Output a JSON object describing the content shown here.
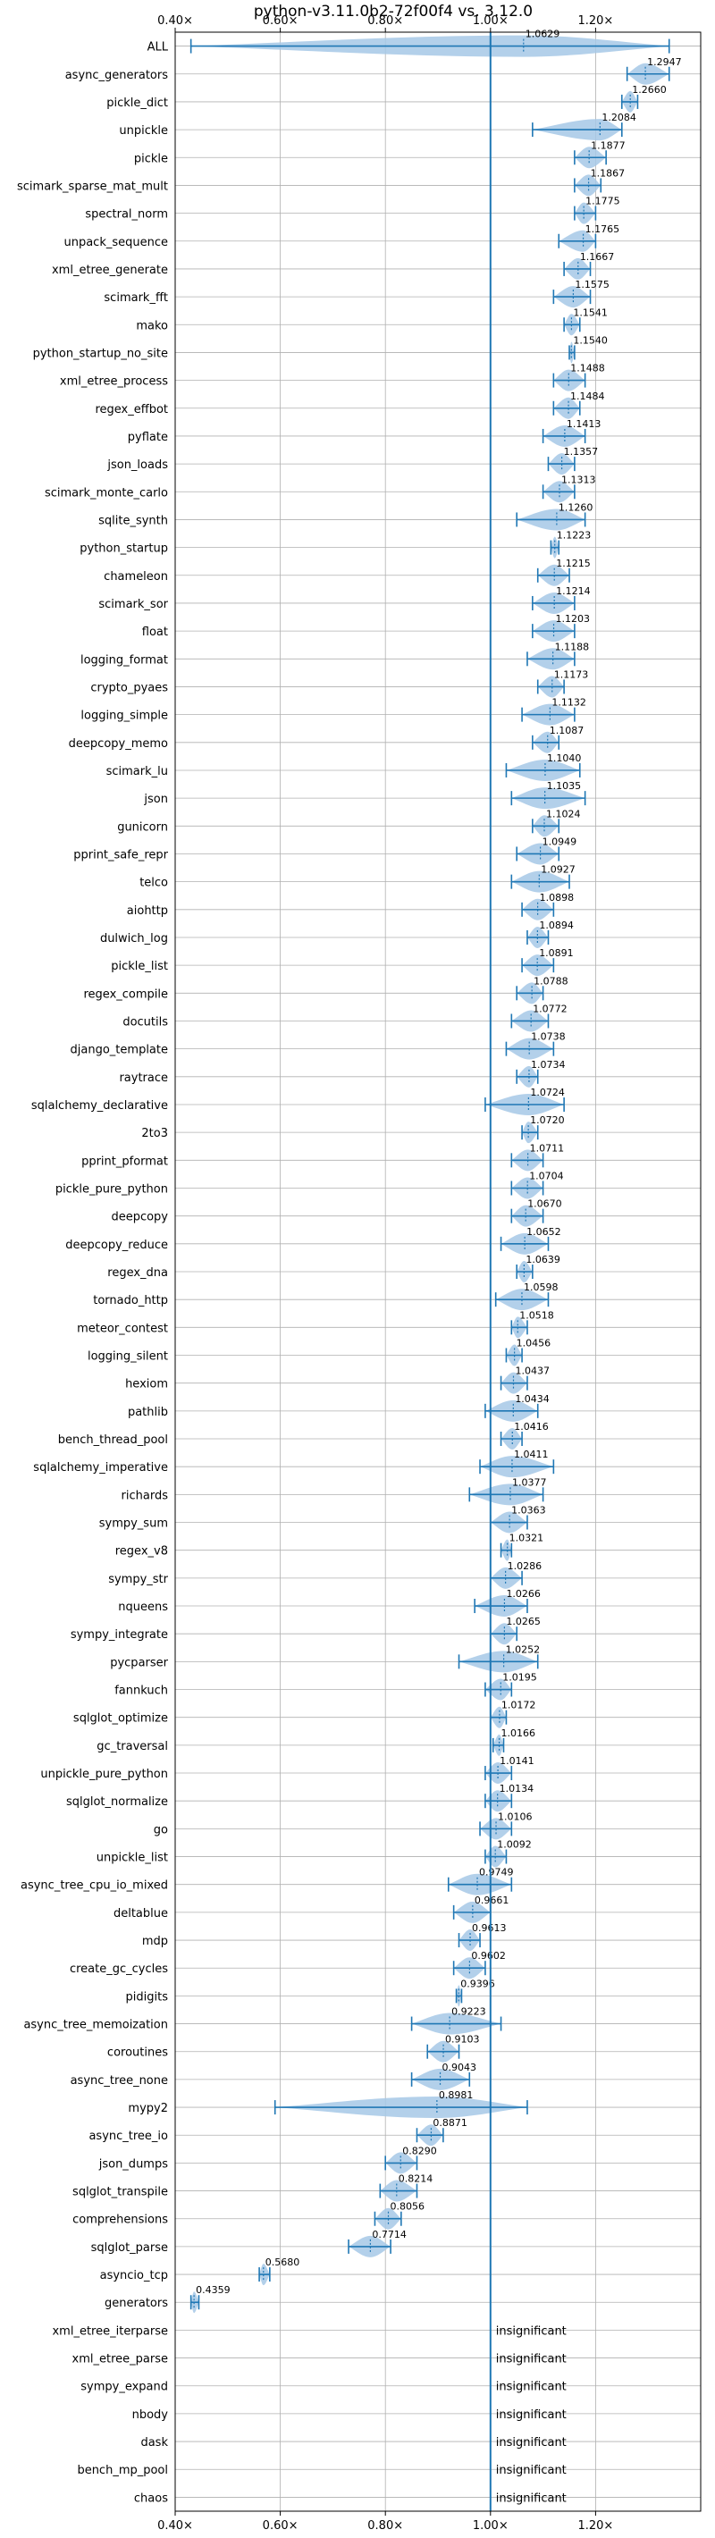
{
  "chart_data": {
    "type": "violin",
    "title": "python-v3.11.0b2-72f00f4 vs. 3.12.0",
    "xlabel": "",
    "ylabel": "",
    "xlim": [
      0.4,
      1.4
    ],
    "x_ticks": [
      0.4,
      0.6,
      0.8,
      1.0,
      1.2
    ],
    "x_tick_labels": [
      "0.40×",
      "0.60×",
      "0.80×",
      "1.00×",
      "1.20×"
    ],
    "reference_line": 1.0,
    "grid": true,
    "colors": {
      "accent": "#1f77b4",
      "violin": "#a6c8e6",
      "grid": "#b0b0b0"
    },
    "benchmarks": [
      {
        "name": "ALL",
        "value": 1.0629,
        "min": 0.43,
        "max": 1.34,
        "label": "1.0629"
      },
      {
        "name": "async_generators",
        "value": 1.2947,
        "min": 1.26,
        "max": 1.34,
        "label": "1.2947"
      },
      {
        "name": "pickle_dict",
        "value": 1.266,
        "min": 1.25,
        "max": 1.28,
        "label": "1.2660"
      },
      {
        "name": "unpickle",
        "value": 1.2084,
        "min": 1.08,
        "max": 1.25,
        "label": "1.2084"
      },
      {
        "name": "pickle",
        "value": 1.1877,
        "min": 1.16,
        "max": 1.22,
        "label": "1.1877"
      },
      {
        "name": "scimark_sparse_mat_mult",
        "value": 1.1867,
        "min": 1.16,
        "max": 1.21,
        "label": "1.1867"
      },
      {
        "name": "spectral_norm",
        "value": 1.1775,
        "min": 1.16,
        "max": 1.2,
        "label": "1.1775"
      },
      {
        "name": "unpack_sequence",
        "value": 1.1765,
        "min": 1.13,
        "max": 1.2,
        "label": "1.1765"
      },
      {
        "name": "xml_etree_generate",
        "value": 1.1667,
        "min": 1.14,
        "max": 1.19,
        "label": "1.1667"
      },
      {
        "name": "scimark_fft",
        "value": 1.1575,
        "min": 1.12,
        "max": 1.19,
        "label": "1.1575"
      },
      {
        "name": "mako",
        "value": 1.1541,
        "min": 1.14,
        "max": 1.17,
        "label": "1.1541"
      },
      {
        "name": "python_startup_no_site",
        "value": 1.154,
        "min": 1.15,
        "max": 1.16,
        "label": "1.1540"
      },
      {
        "name": "xml_etree_process",
        "value": 1.1488,
        "min": 1.12,
        "max": 1.18,
        "label": "1.1488"
      },
      {
        "name": "regex_effbot",
        "value": 1.1484,
        "min": 1.12,
        "max": 1.17,
        "label": "1.1484"
      },
      {
        "name": "pyflate",
        "value": 1.1413,
        "min": 1.1,
        "max": 1.18,
        "label": "1.1413"
      },
      {
        "name": "json_loads",
        "value": 1.1357,
        "min": 1.11,
        "max": 1.16,
        "label": "1.1357"
      },
      {
        "name": "scimark_monte_carlo",
        "value": 1.1313,
        "min": 1.1,
        "max": 1.16,
        "label": "1.1313"
      },
      {
        "name": "sqlite_synth",
        "value": 1.126,
        "min": 1.05,
        "max": 1.18,
        "label": "1.1260"
      },
      {
        "name": "python_startup",
        "value": 1.1223,
        "min": 1.115,
        "max": 1.13,
        "label": "1.1223"
      },
      {
        "name": "chameleon",
        "value": 1.1215,
        "min": 1.09,
        "max": 1.15,
        "label": "1.1215"
      },
      {
        "name": "scimark_sor",
        "value": 1.1214,
        "min": 1.08,
        "max": 1.16,
        "label": "1.1214"
      },
      {
        "name": "float",
        "value": 1.1203,
        "min": 1.08,
        "max": 1.16,
        "label": "1.1203"
      },
      {
        "name": "logging_format",
        "value": 1.1188,
        "min": 1.07,
        "max": 1.16,
        "label": "1.1188"
      },
      {
        "name": "crypto_pyaes",
        "value": 1.1173,
        "min": 1.09,
        "max": 1.14,
        "label": "1.1173"
      },
      {
        "name": "logging_simple",
        "value": 1.1132,
        "min": 1.06,
        "max": 1.16,
        "label": "1.1132"
      },
      {
        "name": "deepcopy_memo",
        "value": 1.1087,
        "min": 1.08,
        "max": 1.13,
        "label": "1.1087"
      },
      {
        "name": "scimark_lu",
        "value": 1.104,
        "min": 1.03,
        "max": 1.17,
        "label": "1.1040"
      },
      {
        "name": "json",
        "value": 1.1035,
        "min": 1.04,
        "max": 1.18,
        "label": "1.1035"
      },
      {
        "name": "gunicorn",
        "value": 1.1024,
        "min": 1.08,
        "max": 1.13,
        "label": "1.1024"
      },
      {
        "name": "pprint_safe_repr",
        "value": 1.0949,
        "min": 1.05,
        "max": 1.13,
        "label": "1.0949"
      },
      {
        "name": "telco",
        "value": 1.0927,
        "min": 1.04,
        "max": 1.15,
        "label": "1.0927"
      },
      {
        "name": "aiohttp",
        "value": 1.0898,
        "min": 1.06,
        "max": 1.12,
        "label": "1.0898"
      },
      {
        "name": "dulwich_log",
        "value": 1.0894,
        "min": 1.07,
        "max": 1.11,
        "label": "1.0894"
      },
      {
        "name": "pickle_list",
        "value": 1.0891,
        "min": 1.06,
        "max": 1.12,
        "label": "1.0891"
      },
      {
        "name": "regex_compile",
        "value": 1.0788,
        "min": 1.05,
        "max": 1.1,
        "label": "1.0788"
      },
      {
        "name": "docutils",
        "value": 1.0772,
        "min": 1.04,
        "max": 1.11,
        "label": "1.0772"
      },
      {
        "name": "django_template",
        "value": 1.0738,
        "min": 1.03,
        "max": 1.12,
        "label": "1.0738"
      },
      {
        "name": "raytrace",
        "value": 1.0734,
        "min": 1.05,
        "max": 1.09,
        "label": "1.0734"
      },
      {
        "name": "sqlalchemy_declarative",
        "value": 1.0724,
        "min": 0.99,
        "max": 1.14,
        "label": "1.0724"
      },
      {
        "name": "2to3",
        "value": 1.072,
        "min": 1.06,
        "max": 1.09,
        "label": "1.0720"
      },
      {
        "name": "pprint_pformat",
        "value": 1.0711,
        "min": 1.04,
        "max": 1.1,
        "label": "1.0711"
      },
      {
        "name": "pickle_pure_python",
        "value": 1.0704,
        "min": 1.04,
        "max": 1.1,
        "label": "1.0704"
      },
      {
        "name": "deepcopy",
        "value": 1.067,
        "min": 1.04,
        "max": 1.1,
        "label": "1.0670"
      },
      {
        "name": "deepcopy_reduce",
        "value": 1.0652,
        "min": 1.02,
        "max": 1.11,
        "label": "1.0652"
      },
      {
        "name": "regex_dna",
        "value": 1.0639,
        "min": 1.05,
        "max": 1.08,
        "label": "1.0639"
      },
      {
        "name": "tornado_http",
        "value": 1.0598,
        "min": 1.01,
        "max": 1.11,
        "label": "1.0598"
      },
      {
        "name": "meteor_contest",
        "value": 1.0518,
        "min": 1.04,
        "max": 1.07,
        "label": "1.0518"
      },
      {
        "name": "logging_silent",
        "value": 1.0456,
        "min": 1.03,
        "max": 1.06,
        "label": "1.0456"
      },
      {
        "name": "hexiom",
        "value": 1.0437,
        "min": 1.02,
        "max": 1.07,
        "label": "1.0437"
      },
      {
        "name": "pathlib",
        "value": 1.0434,
        "min": 0.99,
        "max": 1.09,
        "label": "1.0434"
      },
      {
        "name": "bench_thread_pool",
        "value": 1.0416,
        "min": 1.02,
        "max": 1.06,
        "label": "1.0416"
      },
      {
        "name": "sqlalchemy_imperative",
        "value": 1.0411,
        "min": 0.98,
        "max": 1.12,
        "label": "1.0411"
      },
      {
        "name": "richards",
        "value": 1.0377,
        "min": 0.96,
        "max": 1.1,
        "label": "1.0377"
      },
      {
        "name": "sympy_sum",
        "value": 1.0363,
        "min": 1.0,
        "max": 1.07,
        "label": "1.0363"
      },
      {
        "name": "regex_v8",
        "value": 1.0321,
        "min": 1.02,
        "max": 1.04,
        "label": "1.0321"
      },
      {
        "name": "sympy_str",
        "value": 1.0286,
        "min": 1.0,
        "max": 1.06,
        "label": "1.0286"
      },
      {
        "name": "nqueens",
        "value": 1.0266,
        "min": 0.97,
        "max": 1.07,
        "label": "1.0266"
      },
      {
        "name": "sympy_integrate",
        "value": 1.0265,
        "min": 1.0,
        "max": 1.05,
        "label": "1.0265"
      },
      {
        "name": "pycparser",
        "value": 1.0252,
        "min": 0.94,
        "max": 1.09,
        "label": "1.0252"
      },
      {
        "name": "fannkuch",
        "value": 1.0195,
        "min": 0.99,
        "max": 1.04,
        "label": "1.0195"
      },
      {
        "name": "sqlglot_optimize",
        "value": 1.0172,
        "min": 1.0,
        "max": 1.03,
        "label": "1.0172"
      },
      {
        "name": "gc_traversal",
        "value": 1.0166,
        "min": 1.005,
        "max": 1.025,
        "label": "1.0166"
      },
      {
        "name": "unpickle_pure_python",
        "value": 1.0141,
        "min": 0.99,
        "max": 1.04,
        "label": "1.0141"
      },
      {
        "name": "sqlglot_normalize",
        "value": 1.0134,
        "min": 0.99,
        "max": 1.04,
        "label": "1.0134"
      },
      {
        "name": "go",
        "value": 1.0106,
        "min": 0.98,
        "max": 1.04,
        "label": "1.0106"
      },
      {
        "name": "unpickle_list",
        "value": 1.0092,
        "min": 0.99,
        "max": 1.03,
        "label": "1.0092"
      },
      {
        "name": "async_tree_cpu_io_mixed",
        "value": 0.9749,
        "min": 0.92,
        "max": 1.04,
        "label": "0.9749"
      },
      {
        "name": "deltablue",
        "value": 0.9661,
        "min": 0.93,
        "max": 1.0,
        "label": "0.9661"
      },
      {
        "name": "mdp",
        "value": 0.9613,
        "min": 0.94,
        "max": 0.98,
        "label": "0.9613"
      },
      {
        "name": "create_gc_cycles",
        "value": 0.9602,
        "min": 0.93,
        "max": 0.99,
        "label": "0.9602"
      },
      {
        "name": "pidigits",
        "value": 0.9396,
        "min": 0.935,
        "max": 0.945,
        "label": "0.9396"
      },
      {
        "name": "async_tree_memoization",
        "value": 0.9223,
        "min": 0.85,
        "max": 1.02,
        "label": "0.9223"
      },
      {
        "name": "coroutines",
        "value": 0.9103,
        "min": 0.88,
        "max": 0.94,
        "label": "0.9103"
      },
      {
        "name": "async_tree_none",
        "value": 0.9043,
        "min": 0.85,
        "max": 0.96,
        "label": "0.9043"
      },
      {
        "name": "mypy2",
        "value": 0.8981,
        "min": 0.59,
        "max": 1.07,
        "label": "0.8981"
      },
      {
        "name": "async_tree_io",
        "value": 0.8871,
        "min": 0.86,
        "max": 0.91,
        "label": "0.8871"
      },
      {
        "name": "json_dumps",
        "value": 0.829,
        "min": 0.8,
        "max": 0.86,
        "label": "0.8290"
      },
      {
        "name": "sqlglot_transpile",
        "value": 0.8214,
        "min": 0.79,
        "max": 0.86,
        "label": "0.8214"
      },
      {
        "name": "comprehensions",
        "value": 0.8056,
        "min": 0.78,
        "max": 0.83,
        "label": "0.8056"
      },
      {
        "name": "sqlglot_parse",
        "value": 0.7714,
        "min": 0.73,
        "max": 0.81,
        "label": "0.7714"
      },
      {
        "name": "asyncio_tcp",
        "value": 0.568,
        "min": 0.56,
        "max": 0.58,
        "label": "0.5680"
      },
      {
        "name": "generators",
        "value": 0.4359,
        "min": 0.43,
        "max": 0.445,
        "label": "0.4359"
      },
      {
        "name": "xml_etree_iterparse",
        "insignificant": true,
        "label": "insignificant"
      },
      {
        "name": "xml_etree_parse",
        "insignificant": true,
        "label": "insignificant"
      },
      {
        "name": "sympy_expand",
        "insignificant": true,
        "label": "insignificant"
      },
      {
        "name": "nbody",
        "insignificant": true,
        "label": "insignificant"
      },
      {
        "name": "dask",
        "insignificant": true,
        "label": "insignificant"
      },
      {
        "name": "bench_mp_pool",
        "insignificant": true,
        "label": "insignificant"
      },
      {
        "name": "chaos",
        "insignificant": true,
        "label": "insignificant"
      }
    ]
  }
}
